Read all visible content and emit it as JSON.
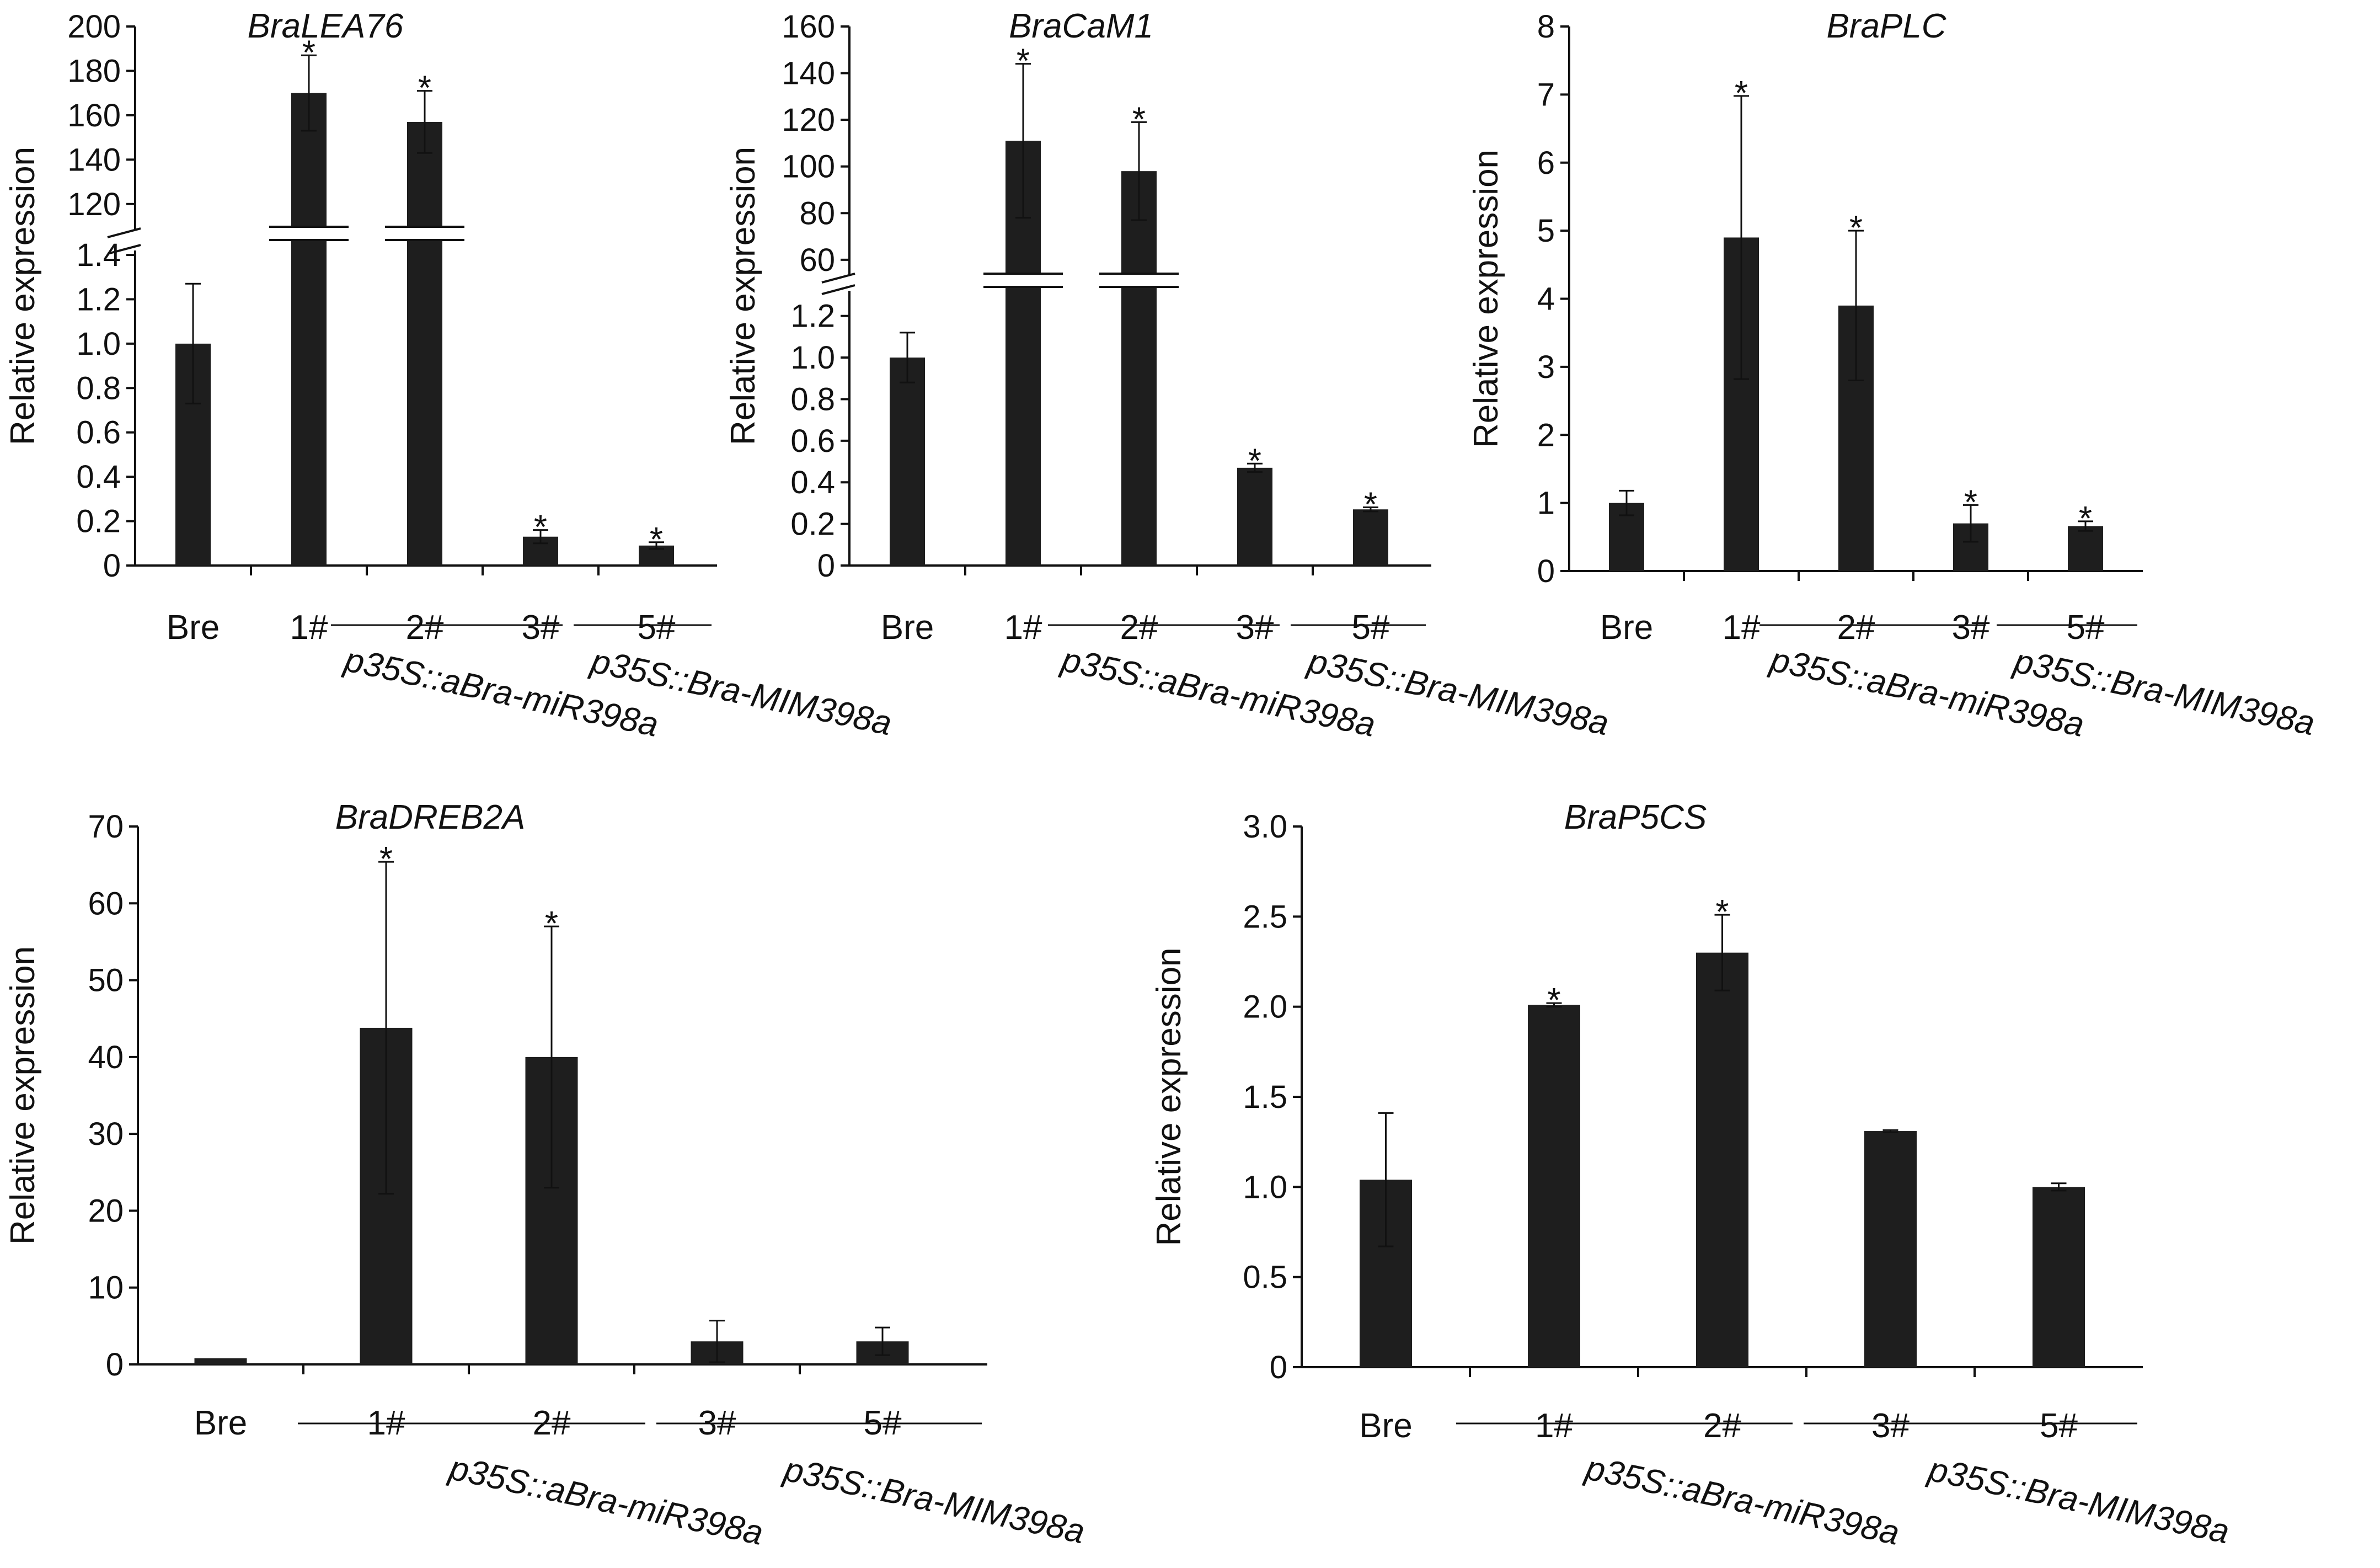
{
  "chart_data": [
    {
      "type": "bar",
      "title": "BraLEA76",
      "ylabel": "Relative expression",
      "categories": [
        "Bre",
        "1#",
        "2#",
        "3#",
        "5#"
      ],
      "values": [
        1.0,
        170,
        157,
        0.13,
        0.09
      ],
      "errors": [
        0.27,
        17,
        14,
        0.03,
        0.015
      ],
      "significant": [
        "",
        "*",
        "*",
        "*",
        "*"
      ],
      "ylim": [
        0,
        200
      ],
      "axis_break": {
        "lower_max": 1.4,
        "upper_min": 110
      },
      "lower_ticks": [
        "0",
        "0.2",
        "0.4",
        "0.6",
        "0.8",
        "1.0",
        "1.2",
        "1.4"
      ],
      "upper_ticks": [
        "120",
        "140",
        "160",
        "180",
        "200"
      ],
      "groups": [
        "p35S::aBra-miR398a",
        "p35S::Bra-MIM398a"
      ]
    },
    {
      "type": "bar",
      "title": "BraCaM1",
      "ylabel": "Relative expression",
      "categories": [
        "Bre",
        "1#",
        "2#",
        "3#",
        "5#"
      ],
      "values": [
        1.0,
        111,
        98,
        0.47,
        0.27
      ],
      "errors": [
        0.12,
        33,
        21,
        0.02,
        0.01
      ],
      "significant": [
        "",
        "*",
        "*",
        "*",
        "*"
      ],
      "ylim": [
        0,
        160
      ],
      "axis_break": {
        "lower_max": 1.3,
        "upper_min": 55
      },
      "lower_ticks": [
        "0",
        "0.2",
        "0.4",
        "0.6",
        "0.8",
        "1.0",
        "1.2"
      ],
      "upper_ticks": [
        "60",
        "80",
        "100",
        "120",
        "140",
        "160"
      ],
      "groups": [
        "p35S::aBra-miR398a",
        "p35S::Bra-MIM398a"
      ]
    },
    {
      "type": "bar",
      "title": "BraPLC",
      "ylabel": "Relative expression",
      "categories": [
        "Bre",
        "1#",
        "2#",
        "3#",
        "5#"
      ],
      "values": [
        1.0,
        4.9,
        3.9,
        0.7,
        0.66
      ],
      "errors": [
        0.18,
        2.08,
        1.1,
        0.27,
        0.07
      ],
      "significant": [
        "",
        "*",
        "*",
        "*",
        "*"
      ],
      "ylim": [
        0,
        8
      ],
      "ticks": [
        "0",
        "1",
        "2",
        "3",
        "4",
        "5",
        "6",
        "7",
        "8"
      ],
      "groups": [
        "p35S::aBra-miR398a",
        "p35S::Bra-MIM398a"
      ]
    },
    {
      "type": "bar",
      "title": "BraDREB2A",
      "ylabel": "Relative expression",
      "categories": [
        "Bre",
        "1#",
        "2#",
        "3#",
        "5#"
      ],
      "values": [
        0.8,
        43.8,
        40,
        3,
        3
      ],
      "errors": [
        0,
        21.6,
        17,
        2.7,
        1.8
      ],
      "significant": [
        "",
        "*",
        "*",
        "",
        ""
      ],
      "ylim": [
        0,
        70
      ],
      "ticks": [
        "0",
        "10",
        "20",
        "30",
        "40",
        "50",
        "60",
        "70"
      ],
      "groups": [
        "p35S::aBra-miR398a",
        "p35S::Bra-MIM398a"
      ]
    },
    {
      "type": "bar",
      "title": "BraP5CS",
      "ylabel": "Relative expression",
      "categories": [
        "Bre",
        "1#",
        "2#",
        "3#",
        "5#"
      ],
      "values": [
        1.04,
        2.01,
        2.3,
        1.31,
        1.0
      ],
      "errors": [
        0.37,
        0.01,
        0.21,
        0.005,
        0.02
      ],
      "significant": [
        "",
        "*",
        "*",
        "",
        ""
      ],
      "ylim": [
        0,
        3.0
      ],
      "ticks": [
        "0",
        "0.5",
        "1.0",
        "1.5",
        "2.0",
        "2.5",
        "3.0"
      ],
      "groups": [
        "p35S::aBra-miR398a",
        "p35S::Bra-MIM398a"
      ]
    }
  ],
  "colors": {
    "bar": "#1e1e1e",
    "axis": "#111111",
    "background": "#ffffff"
  }
}
